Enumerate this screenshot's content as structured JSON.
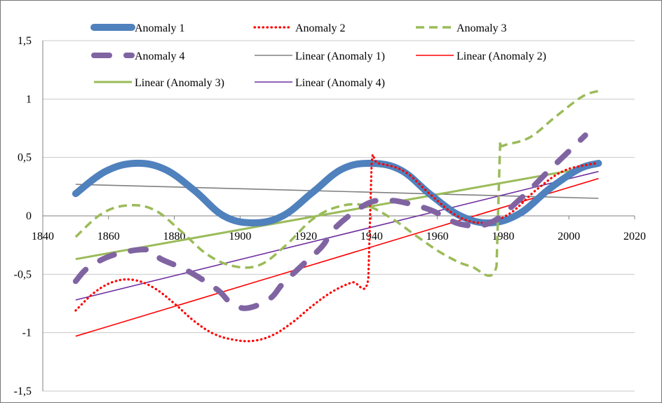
{
  "chart_data": {
    "type": "line",
    "title": "",
    "xlabel": "",
    "ylabel": "",
    "xlim": [
      1840,
      2020
    ],
    "ylim": [
      -1.5,
      1.5
    ],
    "x_ticks": [
      1840,
      1860,
      1880,
      1900,
      1920,
      1940,
      1960,
      1980,
      2000,
      2020
    ],
    "x_tick_labels": [
      "1840",
      "1860",
      "1880",
      "1900",
      "1920",
      "1940",
      "1960",
      "1980",
      "2000",
      "2020"
    ],
    "y_ticks": [
      1.5,
      1,
      0.5,
      0,
      -0.5,
      -1,
      -1.5
    ],
    "y_tick_labels": [
      "1,5",
      "1",
      "0,5",
      "0",
      "-0,5",
      "-1",
      "-1,5"
    ],
    "grid": "horizontal",
    "legend_position": "top",
    "series": [
      {
        "name": "Anomaly 1",
        "color": "#4F81BD",
        "style": "solid-thick",
        "x": [
          1850,
          1859,
          1868,
          1877,
          1886,
          1895,
          1904,
          1913,
          1922,
          1931,
          1940,
          1949,
          1958,
          1967,
          1976,
          1985,
          1994,
          2003,
          2009
        ],
        "y": [
          0.19,
          0.38,
          0.45,
          0.4,
          0.22,
          0.0,
          -0.06,
          0.0,
          0.2,
          0.4,
          0.45,
          0.39,
          0.18,
          0.0,
          -0.06,
          0.02,
          0.23,
          0.4,
          0.45
        ]
      },
      {
        "name": "Anomaly 2",
        "color": "#FF0000",
        "style": "dotted",
        "x": [
          1850,
          1856,
          1862,
          1868,
          1874,
          1880,
          1886,
          1892,
          1898,
          1904,
          1910,
          1916,
          1922,
          1928,
          1934,
          1939,
          1940,
          1942,
          1950,
          1958,
          1966,
          1974,
          1982,
          1990,
          1998,
          2006,
          2009
        ],
        "y": [
          -0.81,
          -0.65,
          -0.56,
          -0.55,
          -0.62,
          -0.75,
          -0.9,
          -1.01,
          -1.06,
          -1.07,
          -1.02,
          -0.91,
          -0.77,
          -0.65,
          -0.57,
          -0.54,
          0.44,
          0.45,
          0.38,
          0.18,
          0.0,
          -0.06,
          0.02,
          0.22,
          0.38,
          0.44,
          0.45
        ]
      },
      {
        "name": "Anomaly 3",
        "color": "#9BBB59",
        "style": "dashed",
        "x": [
          1850,
          1858,
          1866,
          1874,
          1882,
          1890,
          1898,
          1906,
          1914,
          1922,
          1930,
          1938,
          1946,
          1954,
          1962,
          1970,
          1978,
          1979,
          1980,
          1988,
          1996,
          2004,
          2009
        ],
        "y": [
          -0.18,
          0.02,
          0.09,
          0.05,
          -0.13,
          -0.33,
          -0.43,
          -0.42,
          -0.25,
          -0.03,
          0.08,
          0.09,
          -0.02,
          -0.18,
          -0.33,
          -0.43,
          -0.43,
          0.55,
          0.6,
          0.67,
          0.85,
          1.02,
          1.07
        ]
      },
      {
        "name": "Anomaly 4",
        "color": "#8064A2",
        "style": "long-dash",
        "x": [
          1850,
          1854,
          1862,
          1872,
          1876,
          1884,
          1893,
          1897,
          1902,
          1909,
          1913,
          1919,
          1925,
          1928,
          1934,
          1940,
          1945,
          1949,
          1958,
          1967,
          1976,
          1985,
          1994,
          2001,
          2005
        ],
        "y": [
          -0.56,
          -0.44,
          -0.33,
          -0.29,
          -0.37,
          -0.47,
          -0.63,
          -0.74,
          -0.79,
          -0.71,
          -0.58,
          -0.42,
          -0.26,
          -0.13,
          0.02,
          0.12,
          0.13,
          0.12,
          0.05,
          -0.07,
          -0.06,
          0.14,
          0.39,
          0.58,
          0.69
        ]
      },
      {
        "name": "Linear (Anomaly 1)",
        "color": "#808080",
        "style": "thin",
        "x": [
          1850,
          2009
        ],
        "y": [
          0.27,
          0.15
        ]
      },
      {
        "name": "Linear (Anomaly 2)",
        "color": "#FF0000",
        "style": "thin",
        "x": [
          1850,
          2009
        ],
        "y": [
          -1.03,
          0.32
        ]
      },
      {
        "name": "Linear (Anomaly 3)",
        "color": "#9BBB59",
        "style": "medium",
        "x": [
          1850,
          2009
        ],
        "y": [
          -0.37,
          0.43
        ]
      },
      {
        "name": "Linear (Anomaly 4)",
        "color": "#7030A0",
        "style": "thin",
        "x": [
          1850,
          2009
        ],
        "y": [
          -0.72,
          0.38
        ]
      }
    ]
  }
}
